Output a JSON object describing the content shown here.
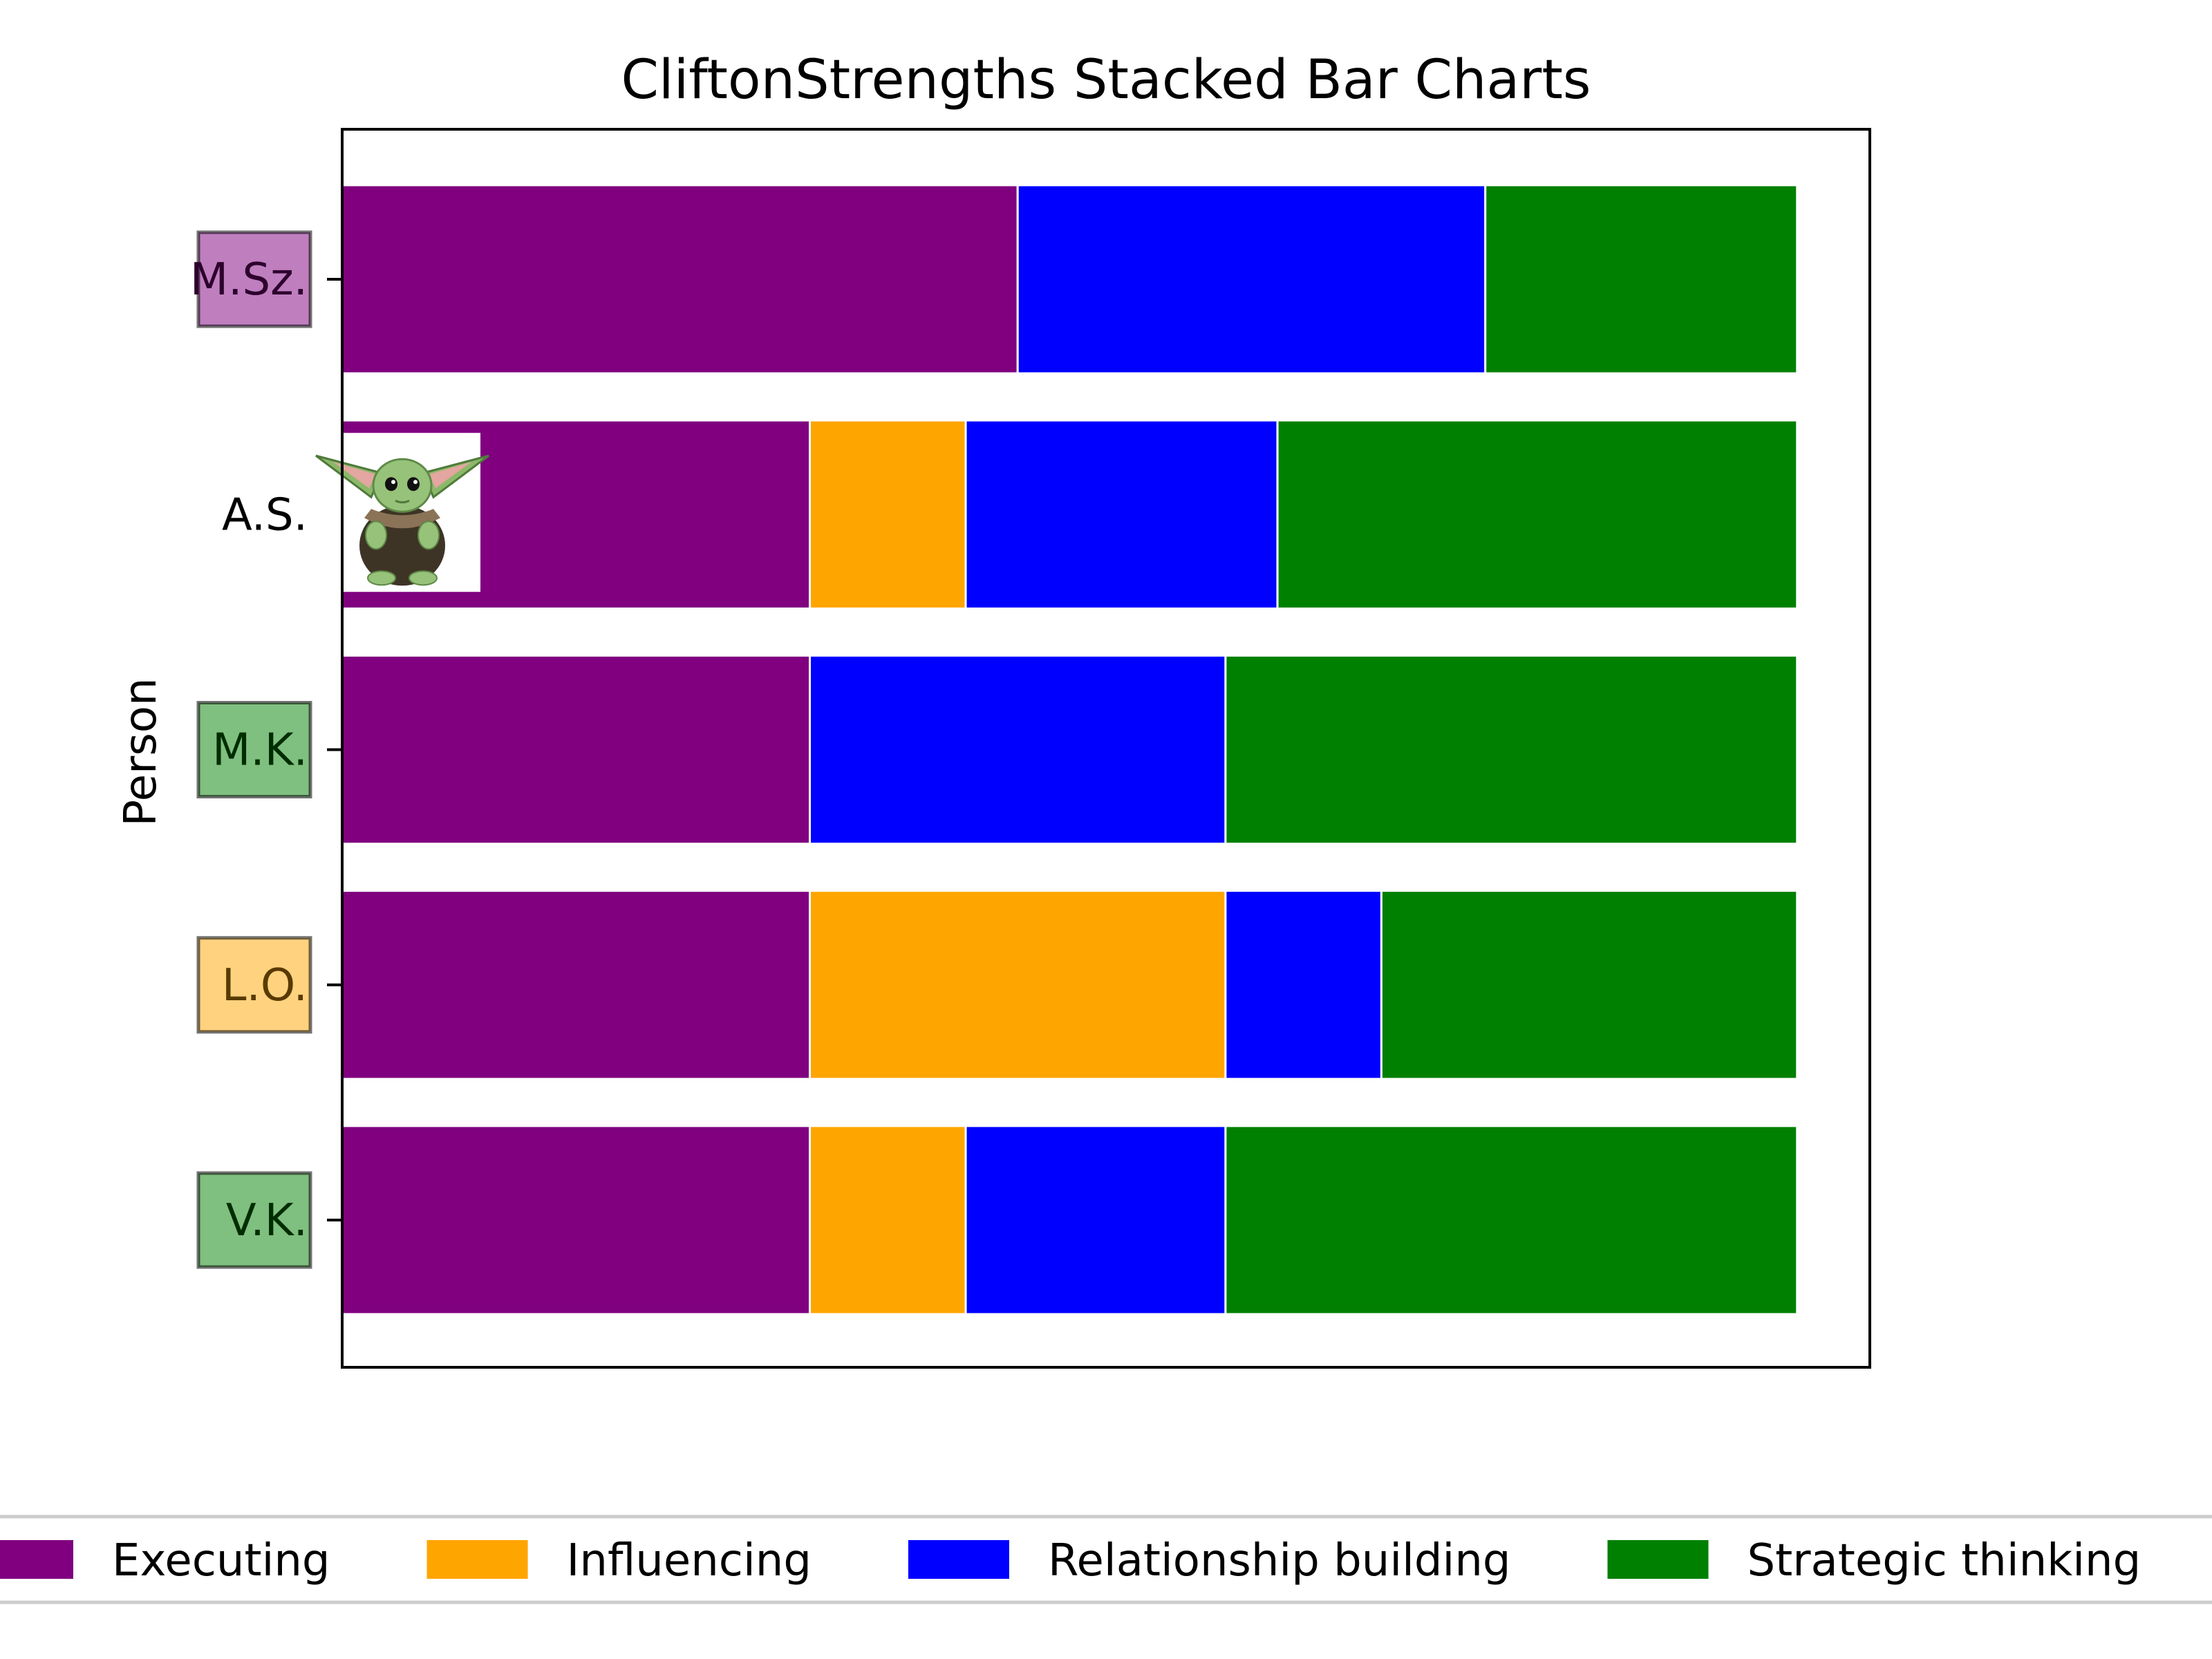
{
  "chart_data": {
    "type": "bar",
    "orientation": "horizontal",
    "stacked": true,
    "title": "CliftonStrengths Stacked Bar Charts",
    "xlabel": "",
    "ylabel": "Person",
    "x_ticks_shown": false,
    "categories": [
      "V.K.",
      "L.O.",
      "M.K.",
      "A.S.",
      "M.Sz."
    ],
    "category_label_boxes": [
      {
        "label": "V.K.",
        "box_color": "#008000"
      },
      {
        "label": "L.O.",
        "box_color": "#FFA500"
      },
      {
        "label": "M.K.",
        "box_color": "#008000"
      },
      {
        "label": "A.S.",
        "box_color": "",
        "icon": "baby-yoda-image"
      },
      {
        "label": "M.Sz.",
        "box_color": "#800080"
      }
    ],
    "series": [
      {
        "name": "Executing",
        "color": "#800080",
        "values": [
          9,
          9,
          9,
          9,
          13
        ]
      },
      {
        "name": "Influencing",
        "color": "#FFA500",
        "values": [
          3,
          8,
          0,
          3,
          0
        ]
      },
      {
        "name": "Relationship building",
        "color": "#0000FF",
        "values": [
          5,
          3,
          8,
          6,
          9
        ]
      },
      {
        "name": "Strategic thinking",
        "color": "#008000",
        "values": [
          11,
          8,
          11,
          10,
          6
        ]
      }
    ],
    "xlim": [
      0,
      29.4
    ],
    "grid": false,
    "legend_position": "bottom"
  }
}
